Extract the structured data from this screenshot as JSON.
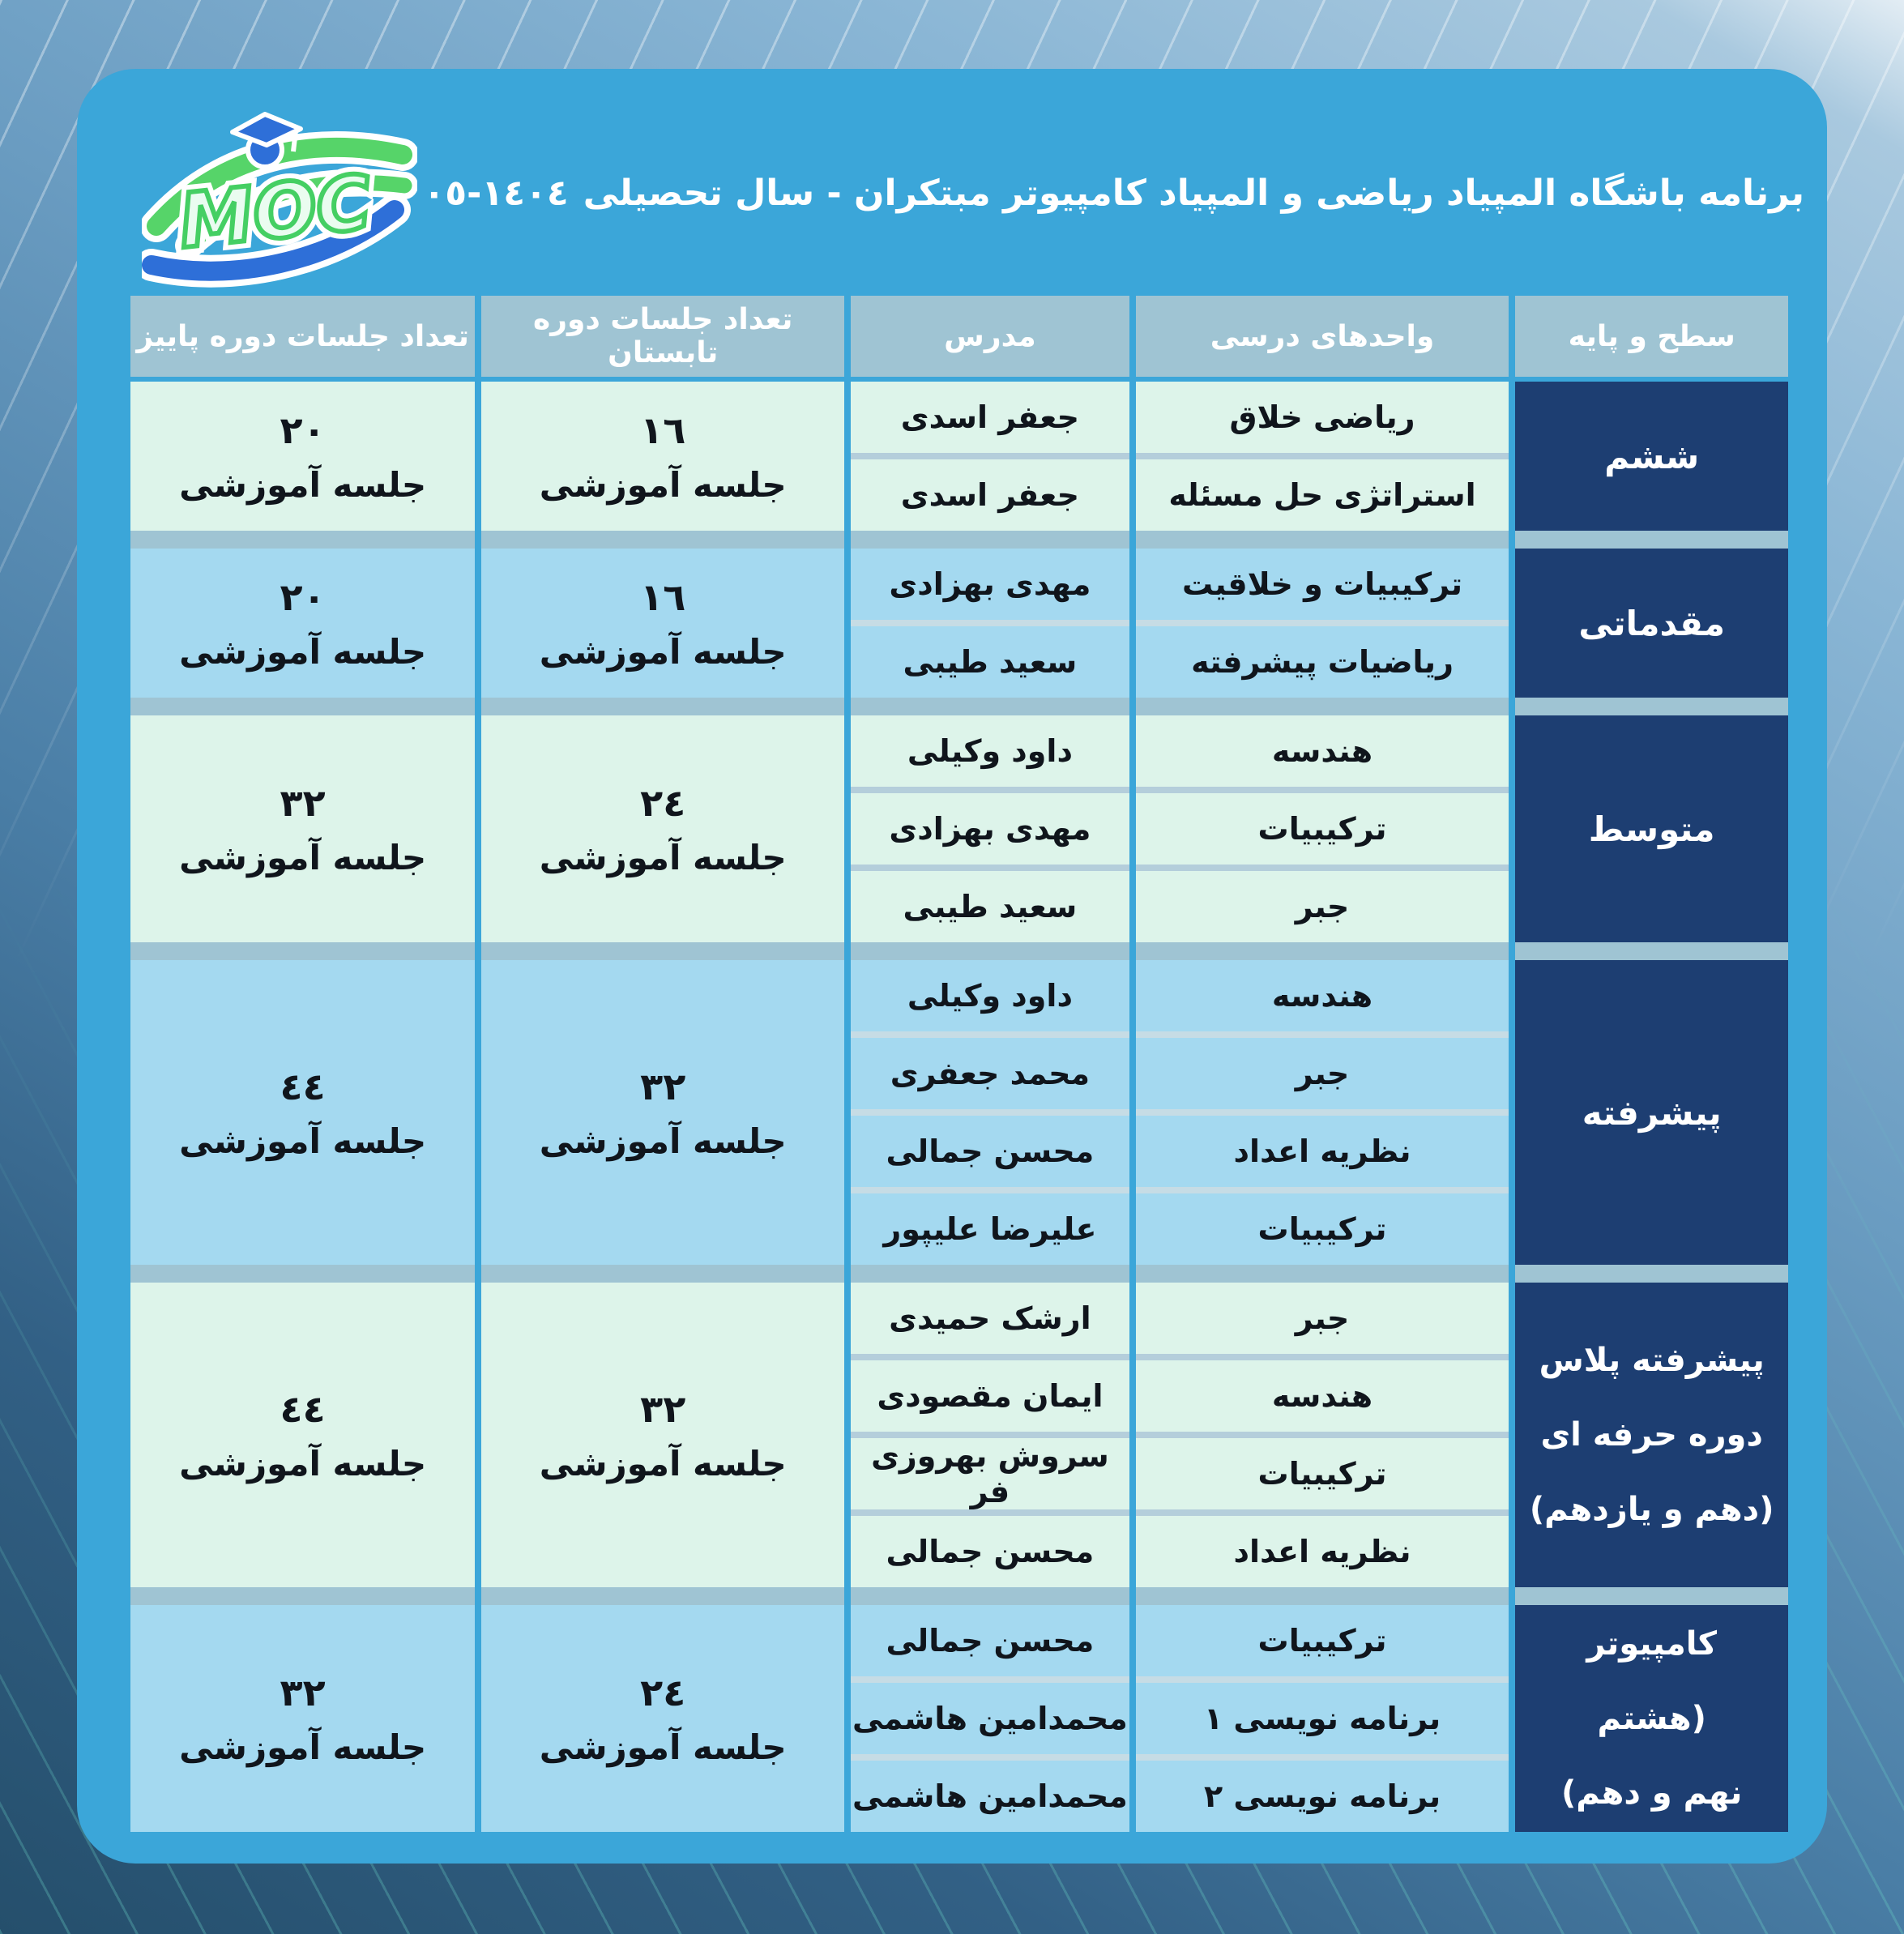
{
  "title": {
    "text": "برنامه باشگاه المپیاد ریاضی و المپیاد کامپیوتر مبتکران - سال تحصیلی",
    "year": "١٤٠٤-٠٥"
  },
  "logo": {
    "text": "MOC"
  },
  "table": {
    "headers": {
      "level": "سطح و پایه",
      "units": "واحدهای درسی",
      "instructor": "مدرس",
      "summer": "تعداد جلسات دوره تابستان",
      "fall": "تعداد جلسات دوره پاییز"
    },
    "session_label": "جلسه آموزشی",
    "groups": [
      {
        "tone": "mint",
        "level_lines": [
          "ششم"
        ],
        "rows": [
          {
            "unit": "ریاضی خلاق",
            "instructor": "جعفر اسدی"
          },
          {
            "unit": "استراتژی حل مسئله",
            "instructor": "جعفر اسدی"
          }
        ],
        "summer": "١٦",
        "fall": "٢٠"
      },
      {
        "tone": "blue",
        "level_lines": [
          "مقدماتی"
        ],
        "rows": [
          {
            "unit": "ترکیبیات و خلاقیت",
            "instructor": "مهدی بهزادی"
          },
          {
            "unit": "ریاضیات پیشرفته",
            "instructor": "سعید طیبی"
          }
        ],
        "summer": "١٦",
        "fall": "٢٠"
      },
      {
        "tone": "mint",
        "level_lines": [
          "متوسط"
        ],
        "rows": [
          {
            "unit": "هندسه",
            "instructor": "داود وکیلی"
          },
          {
            "unit": "ترکیبیات",
            "instructor": "مهدی بهزادی"
          },
          {
            "unit": "جبر",
            "instructor": "سعید طیبی"
          }
        ],
        "summer": "٢٤",
        "fall": "٣٢"
      },
      {
        "tone": "blue",
        "level_lines": [
          "پیشرفته"
        ],
        "rows": [
          {
            "unit": "هندسه",
            "instructor": "داود وکیلی"
          },
          {
            "unit": "جبر",
            "instructor": "محمد جعفری"
          },
          {
            "unit": "نظریه اعداد",
            "instructor": "محسن جمالی"
          },
          {
            "unit": "ترکیبیات",
            "instructor": "علیرضا علیپور"
          }
        ],
        "summer": "٣٢",
        "fall": "٤٤"
      },
      {
        "tone": "mint",
        "level_lines": [
          "پیشرفته پلاس",
          "دوره حرفه ای",
          "(دهم و یازدهم)"
        ],
        "rows": [
          {
            "unit": "جبر",
            "instructor": "ارشک حمیدی"
          },
          {
            "unit": "هندسه",
            "instructor": "ایمان مقصودی"
          },
          {
            "unit": "ترکیبیات",
            "instructor": "سروش بهروزی فر"
          },
          {
            "unit": "نظریه اعداد",
            "instructor": "محسن جمالی"
          }
        ],
        "summer": "٣٢",
        "fall": "٤٤"
      },
      {
        "tone": "blue",
        "level_lines": [
          "کامپیوتر",
          "(هشتم",
          "نهم و دهم)"
        ],
        "rows": [
          {
            "unit": "ترکیبیات",
            "instructor": "محسن جمالی"
          },
          {
            "unit": "برنامه نویسی ١",
            "instructor": "محمدامین هاشمی"
          },
          {
            "unit": "برنامه نویسی ٢",
            "instructor": "محمدامین هاشمی"
          }
        ],
        "summer": "٢٤",
        "fall": "٣٢"
      }
    ]
  },
  "colors": {
    "card": "#3BA6D9",
    "header_band": "#9FC4D3",
    "level_bg": "#1D3E72",
    "row_mint": "#DDF4EA",
    "row_blue": "#A4D9F0",
    "divider_mint": "#B4CEDB",
    "divider_blue": "#C6DCE5",
    "text_dark": "#10151C",
    "text_light": "#FFFFFF",
    "logo_green": "#56D469",
    "logo_blue": "#2E6FD8"
  }
}
